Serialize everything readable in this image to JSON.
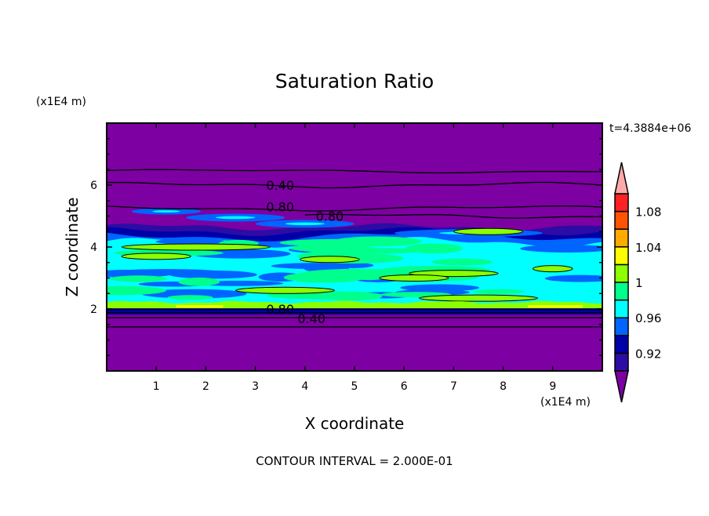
{
  "chart_data": {
    "type": "heatmap",
    "subtype": "filled-contour",
    "title": "Saturation Ratio",
    "xlabel": "X coordinate",
    "ylabel": "Z coordinate",
    "x_unit": "(x1E4 m)",
    "y_unit": "(x1E4 m)",
    "xlim": [
      0,
      10
    ],
    "ylim": [
      0,
      8
    ],
    "x_ticks": [
      1,
      2,
      3,
      4,
      5,
      6,
      7,
      8,
      9
    ],
    "y_ticks": [
      2,
      4,
      6
    ],
    "time_label": "t=4.3884e+06",
    "footer": "CONTOUR INTERVAL = 2.000E-01",
    "contour_labels": [
      {
        "text": "0.40",
        "x": 3.5,
        "y": 6.0
      },
      {
        "text": "0.80",
        "x": 3.5,
        "y": 5.3
      },
      {
        "text": "0.80",
        "x": 4.5,
        "y": 5.0
      },
      {
        "text": "0.80",
        "x": 3.5,
        "y": 2.0
      },
      {
        "text": "0.40",
        "x": 3.5,
        "y": 1.7
      }
    ],
    "colorbar": {
      "levels": [
        0.9,
        0.92,
        0.94,
        0.96,
        0.98,
        1.0,
        1.02,
        1.04,
        1.06,
        1.08,
        1.1
      ],
      "colors": [
        "#2c0ca4",
        "#0000a8",
        "#0064ff",
        "#00ffff",
        "#00ff8c",
        "#8cff00",
        "#ffff00",
        "#ffaa00",
        "#ff5500",
        "#ff2222"
      ],
      "under_color": "#7d00a2",
      "over_color": "#ffaaaa",
      "tick_labels": [
        "1.08",
        "1.04",
        "1",
        "0.96",
        "0.92"
      ]
    }
  }
}
